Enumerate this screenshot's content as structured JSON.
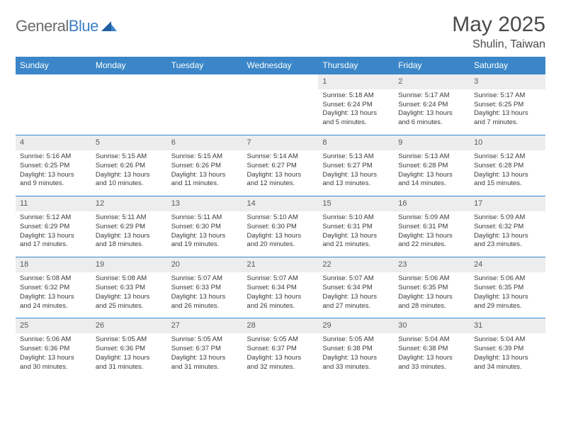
{
  "logo": {
    "part1": "General",
    "part2": "Blue"
  },
  "title": "May 2025",
  "subtitle": "Shulin, Taiwan",
  "colors": {
    "header_bg": "#3a86c8",
    "header_text": "#ffffff",
    "daynum_bg": "#ededed",
    "row_border": "#3a86c8",
    "logo_gray": "#6b6b6b",
    "logo_blue": "#3a7fc4"
  },
  "day_headers": [
    "Sunday",
    "Monday",
    "Tuesday",
    "Wednesday",
    "Thursday",
    "Friday",
    "Saturday"
  ],
  "weeks": [
    [
      {
        "n": "",
        "sr": "",
        "ss": "",
        "dl": ""
      },
      {
        "n": "",
        "sr": "",
        "ss": "",
        "dl": ""
      },
      {
        "n": "",
        "sr": "",
        "ss": "",
        "dl": ""
      },
      {
        "n": "",
        "sr": "",
        "ss": "",
        "dl": ""
      },
      {
        "n": "1",
        "sr": "5:18 AM",
        "ss": "6:24 PM",
        "dl": "13 hours and 5 minutes."
      },
      {
        "n": "2",
        "sr": "5:17 AM",
        "ss": "6:24 PM",
        "dl": "13 hours and 6 minutes."
      },
      {
        "n": "3",
        "sr": "5:17 AM",
        "ss": "6:25 PM",
        "dl": "13 hours and 7 minutes."
      }
    ],
    [
      {
        "n": "4",
        "sr": "5:16 AM",
        "ss": "6:25 PM",
        "dl": "13 hours and 9 minutes."
      },
      {
        "n": "5",
        "sr": "5:15 AM",
        "ss": "6:26 PM",
        "dl": "13 hours and 10 minutes."
      },
      {
        "n": "6",
        "sr": "5:15 AM",
        "ss": "6:26 PM",
        "dl": "13 hours and 11 minutes."
      },
      {
        "n": "7",
        "sr": "5:14 AM",
        "ss": "6:27 PM",
        "dl": "13 hours and 12 minutes."
      },
      {
        "n": "8",
        "sr": "5:13 AM",
        "ss": "6:27 PM",
        "dl": "13 hours and 13 minutes."
      },
      {
        "n": "9",
        "sr": "5:13 AM",
        "ss": "6:28 PM",
        "dl": "13 hours and 14 minutes."
      },
      {
        "n": "10",
        "sr": "5:12 AM",
        "ss": "6:28 PM",
        "dl": "13 hours and 15 minutes."
      }
    ],
    [
      {
        "n": "11",
        "sr": "5:12 AM",
        "ss": "6:29 PM",
        "dl": "13 hours and 17 minutes."
      },
      {
        "n": "12",
        "sr": "5:11 AM",
        "ss": "6:29 PM",
        "dl": "13 hours and 18 minutes."
      },
      {
        "n": "13",
        "sr": "5:11 AM",
        "ss": "6:30 PM",
        "dl": "13 hours and 19 minutes."
      },
      {
        "n": "14",
        "sr": "5:10 AM",
        "ss": "6:30 PM",
        "dl": "13 hours and 20 minutes."
      },
      {
        "n": "15",
        "sr": "5:10 AM",
        "ss": "6:31 PM",
        "dl": "13 hours and 21 minutes."
      },
      {
        "n": "16",
        "sr": "5:09 AM",
        "ss": "6:31 PM",
        "dl": "13 hours and 22 minutes."
      },
      {
        "n": "17",
        "sr": "5:09 AM",
        "ss": "6:32 PM",
        "dl": "13 hours and 23 minutes."
      }
    ],
    [
      {
        "n": "18",
        "sr": "5:08 AM",
        "ss": "6:32 PM",
        "dl": "13 hours and 24 minutes."
      },
      {
        "n": "19",
        "sr": "5:08 AM",
        "ss": "6:33 PM",
        "dl": "13 hours and 25 minutes."
      },
      {
        "n": "20",
        "sr": "5:07 AM",
        "ss": "6:33 PM",
        "dl": "13 hours and 26 minutes."
      },
      {
        "n": "21",
        "sr": "5:07 AM",
        "ss": "6:34 PM",
        "dl": "13 hours and 26 minutes."
      },
      {
        "n": "22",
        "sr": "5:07 AM",
        "ss": "6:34 PM",
        "dl": "13 hours and 27 minutes."
      },
      {
        "n": "23",
        "sr": "5:06 AM",
        "ss": "6:35 PM",
        "dl": "13 hours and 28 minutes."
      },
      {
        "n": "24",
        "sr": "5:06 AM",
        "ss": "6:35 PM",
        "dl": "13 hours and 29 minutes."
      }
    ],
    [
      {
        "n": "25",
        "sr": "5:06 AM",
        "ss": "6:36 PM",
        "dl": "13 hours and 30 minutes."
      },
      {
        "n": "26",
        "sr": "5:05 AM",
        "ss": "6:36 PM",
        "dl": "13 hours and 31 minutes."
      },
      {
        "n": "27",
        "sr": "5:05 AM",
        "ss": "6:37 PM",
        "dl": "13 hours and 31 minutes."
      },
      {
        "n": "28",
        "sr": "5:05 AM",
        "ss": "6:37 PM",
        "dl": "13 hours and 32 minutes."
      },
      {
        "n": "29",
        "sr": "5:05 AM",
        "ss": "6:38 PM",
        "dl": "13 hours and 33 minutes."
      },
      {
        "n": "30",
        "sr": "5:04 AM",
        "ss": "6:38 PM",
        "dl": "13 hours and 33 minutes."
      },
      {
        "n": "31",
        "sr": "5:04 AM",
        "ss": "6:39 PM",
        "dl": "13 hours and 34 minutes."
      }
    ]
  ],
  "labels": {
    "sunrise": "Sunrise: ",
    "sunset": "Sunset: ",
    "daylight": "Daylight: "
  }
}
